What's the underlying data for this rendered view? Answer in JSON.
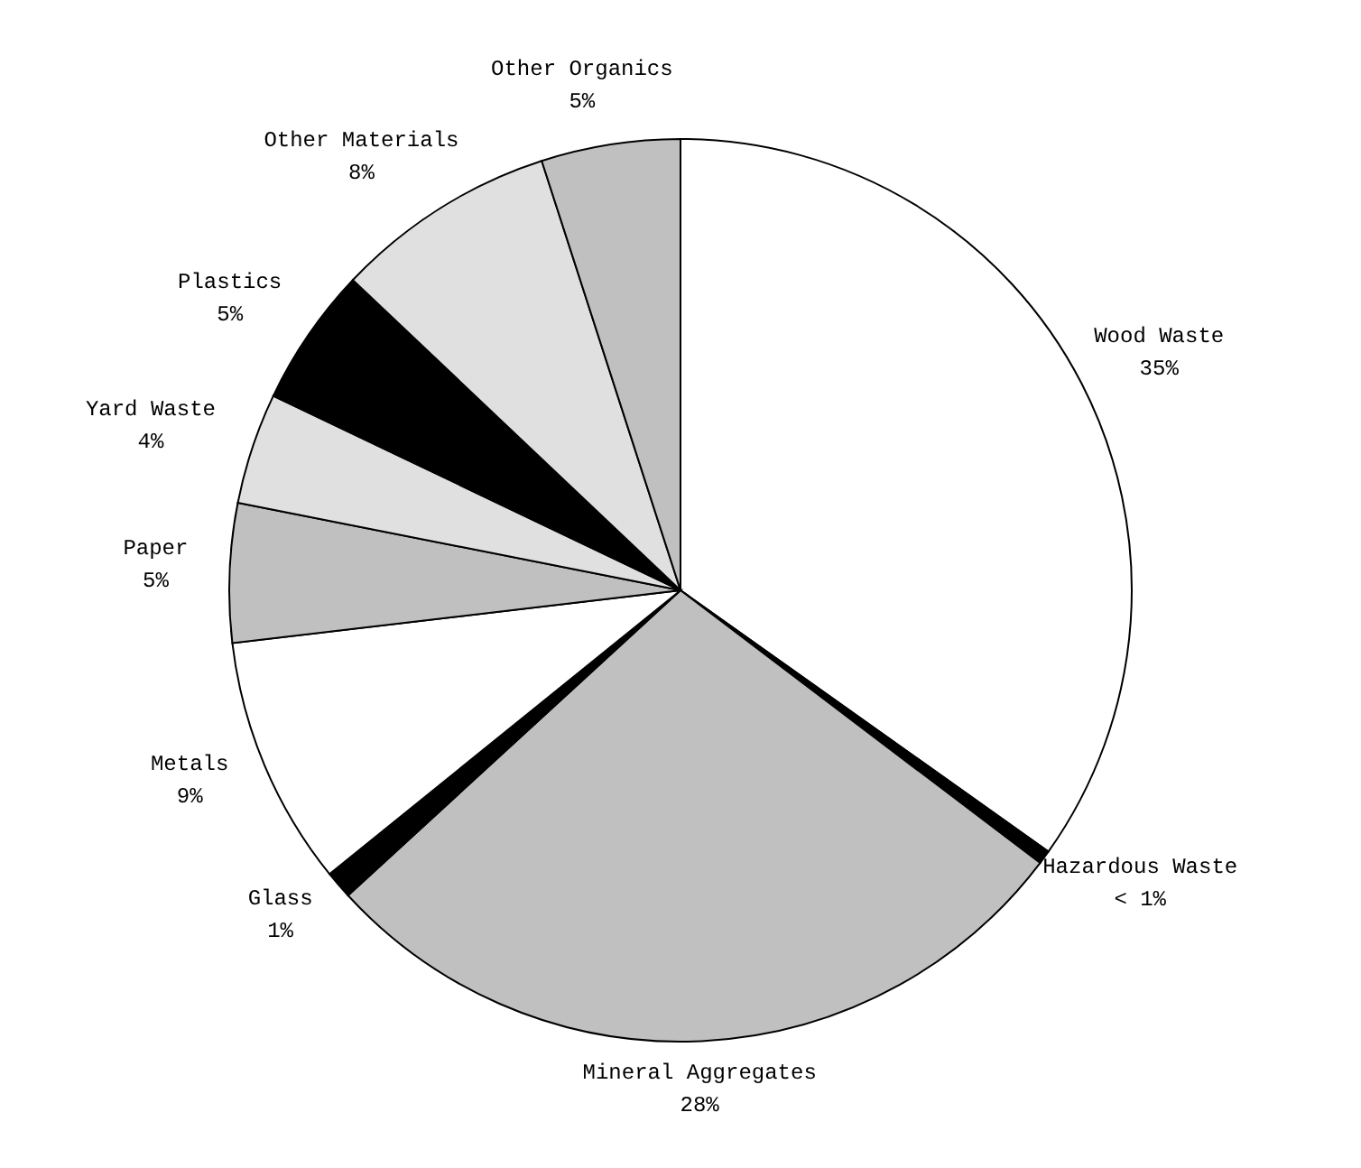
{
  "chart_data": {
    "type": "pie",
    "categories": [
      "Wood Waste",
      "Hazardous Waste",
      "Mineral Aggregates",
      "Glass",
      "Metals",
      "Paper",
      "Yard Waste",
      "Plastics",
      "Other Materials",
      "Other Organics"
    ],
    "values": [
      35,
      0.5,
      28,
      1,
      9,
      5,
      4,
      5,
      8,
      5
    ],
    "value_labels": [
      "35%",
      "< 1%",
      "28%",
      "1%",
      "9%",
      "5%",
      "4%",
      "5%",
      "8%",
      "5%"
    ],
    "colors": [
      "#ffffff",
      "#000000",
      "#c0c0c0",
      "#000000",
      "#ffffff",
      "#c0c0c0",
      "#e0e0e0",
      "#000000",
      "#e0e0e0",
      "#c0c0c0"
    ],
    "legend": false
  }
}
